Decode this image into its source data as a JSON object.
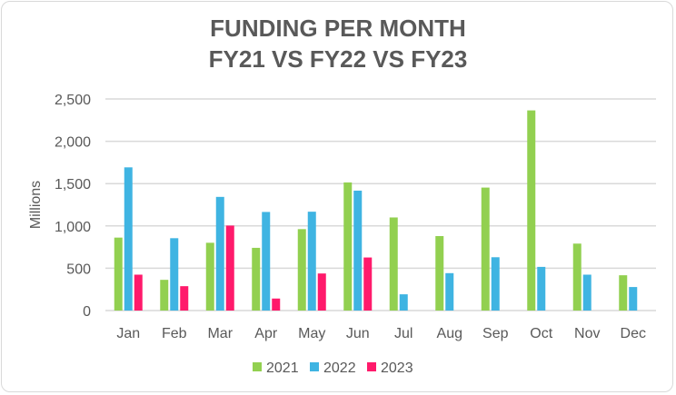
{
  "chart_data": {
    "type": "bar",
    "title": [
      "FUNDING PER MONTH",
      "FY21 VS FY22 VS FY23"
    ],
    "ylabel": "Millions",
    "xlabel": "",
    "ylim": [
      0,
      2500
    ],
    "yticks": [
      0,
      500,
      1000,
      1500,
      2000,
      2500
    ],
    "ytick_labels": [
      "0",
      "500",
      "1,000",
      "1,500",
      "2,000",
      "2,500"
    ],
    "grid": true,
    "legend": "bottom",
    "categories": [
      "Jan",
      "Feb",
      "Mar",
      "Apr",
      "May",
      "Jun",
      "Jul",
      "Aug",
      "Sep",
      "Oct",
      "Nov",
      "Dec"
    ],
    "series": [
      {
        "name": "2021",
        "color": "#92d050",
        "values": [
          862,
          363,
          801,
          741,
          962,
          1514,
          1100,
          880,
          1453,
          2365,
          791,
          417
        ]
      },
      {
        "name": "2022",
        "color": "#3fb4e2",
        "values": [
          1692,
          855,
          1343,
          1165,
          1168,
          1417,
          192,
          442,
          630,
          516,
          424,
          278
        ]
      },
      {
        "name": "2023",
        "color": "#ff1a6b",
        "values": [
          424,
          288,
          1004,
          142,
          438,
          627,
          null,
          null,
          null,
          null,
          null,
          null
        ]
      }
    ]
  }
}
